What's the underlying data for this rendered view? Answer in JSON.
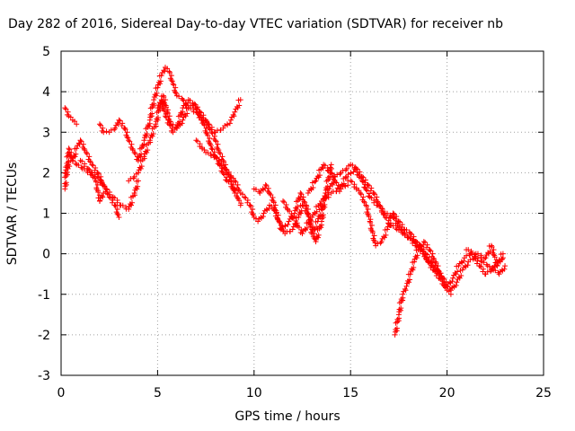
{
  "chart_data": {
    "type": "scatter",
    "title": "Day 282 of 2016, Sidereal Day-to-day VTEC variation (SDTVAR) for receiver nb",
    "xlabel": "GPS time / hours",
    "ylabel": "SDTVAR / TECUs",
    "xlim": [
      0,
      25
    ],
    "ylim": [
      -3,
      5
    ],
    "xticks": [
      "0",
      "5",
      "10",
      "15",
      "20",
      "25"
    ],
    "yticks": [
      "-3",
      "-2",
      "-1",
      "0",
      "1",
      "2",
      "3",
      "4",
      "5"
    ],
    "grid": true,
    "marker": "+",
    "color": "#ff0000",
    "series": [
      {
        "x": [
          0.2,
          0.4,
          0.6,
          0.8,
          1.0,
          1.3,
          1.6,
          1.9,
          2.2,
          2.5,
          2.8,
          3.0
        ],
        "y": [
          1.6,
          2.6,
          2.3,
          2.6,
          2.8,
          2.5,
          2.2,
          2.0,
          1.7,
          1.4,
          1.2,
          0.9
        ]
      },
      {
        "x": [
          0.2,
          0.5,
          0.8,
          1.1,
          1.5,
          1.9,
          2.3,
          2.7,
          3.1,
          3.5,
          3.8,
          4.0
        ],
        "y": [
          2.0,
          2.3,
          2.2,
          2.1,
          2.0,
          1.9,
          1.6,
          1.4,
          1.2,
          1.1,
          1.5,
          1.8
        ]
      },
      {
        "x": [
          0.2,
          0.4,
          0.6,
          0.8
        ],
        "y": [
          3.6,
          3.4,
          3.3,
          3.2
        ]
      },
      {
        "x": [
          1.0,
          1.4,
          1.8,
          2.0,
          2.2
        ],
        "y": [
          2.3,
          2.1,
          1.8,
          1.3,
          1.5
        ]
      },
      {
        "x": [
          2.0,
          2.2,
          2.5,
          2.8,
          3.0,
          3.3,
          3.5,
          3.8,
          4.0,
          4.3,
          4.6,
          4.8,
          5.0,
          5.2,
          5.4,
          5.6,
          5.8,
          6.0,
          6.3,
          6.6,
          7.0,
          7.3,
          7.6,
          8.0,
          8.4,
          8.8,
          9.0,
          9.3
        ],
        "y": [
          3.2,
          3.0,
          3.0,
          3.1,
          3.3,
          3.1,
          2.8,
          2.5,
          2.3,
          2.8,
          3.3,
          3.8,
          4.1,
          4.4,
          4.6,
          4.5,
          4.2,
          3.9,
          3.8,
          3.6,
          3.5,
          3.3,
          3.2,
          3.0,
          3.1,
          3.3,
          3.5,
          3.8
        ]
      },
      {
        "x": [
          3.5,
          3.8,
          4.0,
          4.3,
          4.6,
          4.9,
          5.1,
          5.3,
          5.5,
          5.7,
          6.0,
          6.3,
          6.6,
          6.9,
          7.2,
          7.5,
          7.8,
          8.0,
          8.2,
          8.4,
          8.6,
          8.8,
          9.0
        ],
        "y": [
          1.8,
          1.9,
          2.0,
          2.4,
          2.8,
          3.2,
          3.6,
          3.9,
          3.5,
          3.2,
          3.1,
          3.3,
          3.6,
          3.7,
          3.5,
          3.3,
          3.0,
          2.8,
          2.5,
          2.3,
          2.0,
          1.8,
          1.5
        ]
      },
      {
        "x": [
          5.0,
          5.2,
          5.4,
          5.6,
          5.8,
          6.0,
          6.3,
          6.6,
          7.0,
          7.4,
          7.8,
          8.2,
          8.6,
          9.0,
          9.3
        ],
        "y": [
          3.6,
          3.8,
          3.4,
          3.2,
          3.0,
          3.1,
          3.6,
          3.8,
          3.6,
          3.2,
          2.6,
          2.2,
          1.8,
          1.6,
          1.2
        ]
      },
      {
        "x": [
          7.0,
          7.5,
          8.0,
          8.5,
          9.0,
          9.3,
          9.5,
          9.8,
          10.0,
          10.2,
          10.5,
          10.8,
          11.0,
          11.3,
          11.6,
          12.0,
          12.3,
          12.5,
          12.8,
          13.0,
          13.2,
          13.5,
          13.7,
          14.0
        ],
        "y": [
          2.8,
          2.5,
          2.4,
          2.1,
          1.8,
          1.5,
          1.4,
          1.2,
          0.9,
          0.8,
          1.0,
          1.2,
          1.1,
          0.8,
          0.5,
          0.6,
          0.9,
          1.2,
          1.0,
          0.6,
          0.3,
          0.8,
          1.5,
          2.2
        ]
      },
      {
        "x": [
          10.0,
          10.3,
          10.6,
          11.0,
          11.4,
          11.8,
          12.1,
          12.4,
          12.7,
          13.0,
          13.3,
          13.6,
          13.9,
          14.2,
          14.5,
          14.8,
          15.0,
          15.3,
          15.6,
          15.9,
          16.2,
          16.5,
          16.8,
          17.1,
          17.4,
          17.7,
          18.0,
          18.3,
          18.6,
          18.9,
          19.2,
          19.5,
          19.8,
          20.0,
          20.3,
          20.6,
          20.9,
          21.2,
          21.5,
          21.8,
          22.1,
          22.4,
          22.7,
          23.0
        ],
        "y": [
          1.6,
          1.5,
          1.7,
          1.3,
          0.6,
          0.8,
          1.0,
          1.5,
          1.2,
          0.5,
          0.8,
          1.3,
          1.6,
          1.9,
          2.0,
          2.1,
          2.2,
          2.1,
          1.9,
          1.7,
          1.5,
          1.2,
          0.9,
          0.7,
          0.6,
          0.5,
          0.4,
          0.3,
          0.2,
          0.0,
          -0.2,
          -0.4,
          -0.6,
          -0.8,
          -0.6,
          -0.3,
          -0.1,
          0.0,
          -0.1,
          -0.2,
          -0.3,
          -0.4,
          -0.5,
          -0.3
        ]
      },
      {
        "x": [
          11.5,
          12.0,
          12.5,
          13.0,
          13.5,
          14.0,
          14.5,
          15.0,
          15.5,
          15.8,
          16.0,
          16.3,
          16.6,
          16.9,
          17.2,
          17.5,
          17.8,
          18.1,
          18.4,
          18.7,
          19.0,
          19.3,
          19.6,
          19.9,
          20.2,
          20.5,
          20.8,
          21.1,
          21.4,
          21.7,
          22.0,
          22.3,
          22.6,
          22.9
        ],
        "y": [
          1.3,
          0.9,
          0.5,
          0.9,
          1.3,
          1.5,
          1.6,
          1.8,
          1.5,
          1.2,
          0.8,
          0.2,
          0.3,
          0.6,
          1.0,
          0.8,
          0.6,
          0.5,
          0.3,
          0.1,
          -0.2,
          -0.4,
          -0.6,
          -0.8,
          -0.9,
          -0.7,
          -0.4,
          -0.2,
          -0.1,
          -0.3,
          -0.5,
          -0.4,
          -0.2,
          -0.1
        ]
      },
      {
        "x": [
          17.3,
          17.5,
          17.7,
          17.9,
          18.1,
          18.3,
          18.5,
          18.8,
          19.1,
          19.4,
          19.7,
          20.0,
          20.2
        ],
        "y": [
          -2.0,
          -1.5,
          -1.0,
          -0.8,
          -0.5,
          -0.2,
          0.1,
          0.3,
          0.1,
          -0.2,
          -0.6,
          -0.9,
          -1.0
        ]
      },
      {
        "x": [
          12.8,
          13.2,
          13.6,
          14.0,
          14.4,
          14.8,
          15.2,
          15.6,
          16.0,
          16.4,
          16.8,
          17.2,
          17.6,
          18.0,
          18.4,
          18.8,
          19.2,
          19.6
        ],
        "y": [
          1.5,
          1.8,
          2.2,
          2.0,
          1.6,
          1.9,
          2.1,
          1.8,
          1.4,
          1.2,
          1.0,
          0.9,
          0.6,
          0.4,
          0.2,
          0.0,
          -0.3,
          -0.5
        ]
      },
      {
        "x": [
          21.0,
          21.5,
          22.0,
          22.3,
          22.6,
          22.9
        ],
        "y": [
          0.1,
          0.0,
          -0.1,
          0.2,
          -0.3,
          0.0
        ]
      }
    ]
  }
}
